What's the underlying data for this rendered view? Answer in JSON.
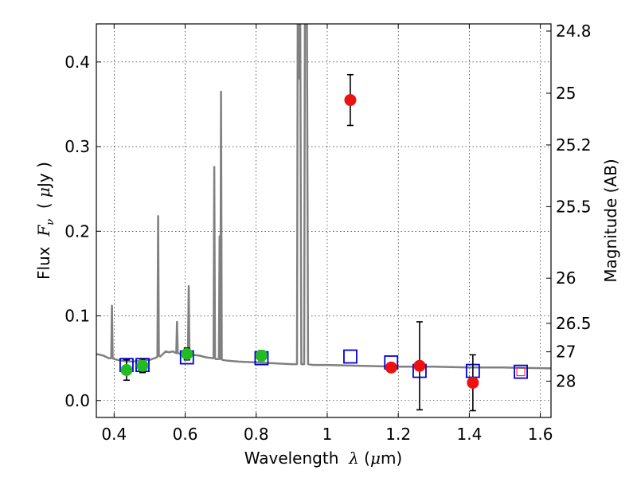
{
  "chart_data": {
    "type": "scatter",
    "xlabel_parts": [
      "Wavelength  ",
      "λ",
      " (",
      "μ",
      "m)"
    ],
    "ylabel_parts": [
      "Flux  ",
      "F",
      "ν",
      "  ( ",
      "μ",
      "Jy )"
    ],
    "y2label": "Magnitude (AB)",
    "xlim": [
      0.35,
      1.63
    ],
    "ylim": [
      -0.02,
      0.445
    ],
    "x_ticks": [
      0.4,
      0.6,
      0.8,
      1.0,
      1.2,
      1.4,
      1.6
    ],
    "x_tick_labels": [
      "0.4",
      "0.6",
      "0.8",
      "1",
      "1.2",
      "1.4",
      "1.6"
    ],
    "y_ticks": [
      0.0,
      0.1,
      0.2,
      0.3,
      0.4
    ],
    "y_tick_labels": [
      "0.0",
      "0.1",
      "0.2",
      "0.3",
      "0.4"
    ],
    "y2_ticks": [
      24.8,
      25,
      25.2,
      25.5,
      26,
      26.5,
      27,
      28
    ],
    "y2_tick_labels": [
      "24.8",
      "25",
      "25.2",
      "25.5",
      "26",
      "26.5",
      "27",
      "28"
    ],
    "grid": true,
    "colors": {
      "sed": "#808080",
      "green_points": "#22bb22",
      "red_points": "#ee1111",
      "model_box": "#0000dd",
      "last_box_inner": "#ee1111",
      "errorbar": "#000000"
    },
    "series": [
      {
        "values_note_key": "sed_model",
        "style": "line",
        "x": [
          0.35,
          0.37,
          0.385,
          0.392,
          0.394,
          0.396,
          0.4,
          0.42,
          0.45,
          0.48,
          0.5,
          0.52,
          0.522,
          0.524,
          0.526,
          0.53,
          0.545,
          0.555,
          0.565,
          0.575,
          0.577,
          0.579,
          0.59,
          0.6,
          0.605,
          0.608,
          0.61,
          0.612,
          0.62,
          0.64,
          0.66,
          0.68,
          0.682,
          0.684,
          0.686,
          0.69,
          0.695,
          0.697,
          0.699,
          0.701,
          0.703,
          0.705,
          0.72,
          0.75,
          0.8,
          0.85,
          0.9,
          0.915,
          0.917,
          0.92,
          0.922,
          0.924,
          0.927,
          0.935,
          0.937,
          0.94,
          0.943,
          0.946,
          0.96,
          1.0,
          1.1,
          1.2,
          1.3,
          1.4,
          1.5,
          1.63
        ],
        "y": [
          0.055,
          0.053,
          0.05,
          0.05,
          0.112,
          0.05,
          0.049,
          0.047,
          0.046,
          0.047,
          0.048,
          0.051,
          0.052,
          0.218,
          0.053,
          0.052,
          0.058,
          0.057,
          0.058,
          0.056,
          0.093,
          0.056,
          0.055,
          0.056,
          0.055,
          0.056,
          0.135,
          0.056,
          0.054,
          0.053,
          0.051,
          0.05,
          0.276,
          0.05,
          0.049,
          0.049,
          0.049,
          0.194,
          0.049,
          0.365,
          0.049,
          0.048,
          0.047,
          0.046,
          0.045,
          0.044,
          0.043,
          0.043,
          0.445,
          0.445,
          0.38,
          0.445,
          0.043,
          0.043,
          0.445,
          0.445,
          0.445,
          0.043,
          0.042,
          0.042,
          0.041,
          0.04,
          0.04,
          0.039,
          0.039,
          0.038
        ]
      },
      {
        "values_note_key": "green_photometry",
        "style": "circle",
        "x": [
          0.435,
          0.48,
          0.605,
          0.815
        ],
        "y": [
          0.036,
          0.041,
          0.055,
          0.053
        ],
        "yerr": [
          0.012,
          0.008,
          0.007,
          0.006
        ]
      },
      {
        "values_note_key": "red_photometry",
        "style": "circle",
        "x": [
          1.065,
          1.18,
          1.26,
          1.41
        ],
        "y": [
          0.355,
          0.039,
          0.041,
          0.021
        ],
        "yerr": [
          0.03,
          0.004,
          0.052,
          0.033
        ]
      },
      {
        "values_note_key": "model_bands",
        "style": "open-square",
        "x": [
          0.435,
          0.48,
          0.605,
          0.815,
          1.065,
          1.18,
          1.26,
          1.41,
          1.545
        ],
        "y": [
          0.042,
          0.042,
          0.051,
          0.05,
          0.052,
          0.045,
          0.035,
          0.035,
          0.034
        ]
      }
    ]
  }
}
